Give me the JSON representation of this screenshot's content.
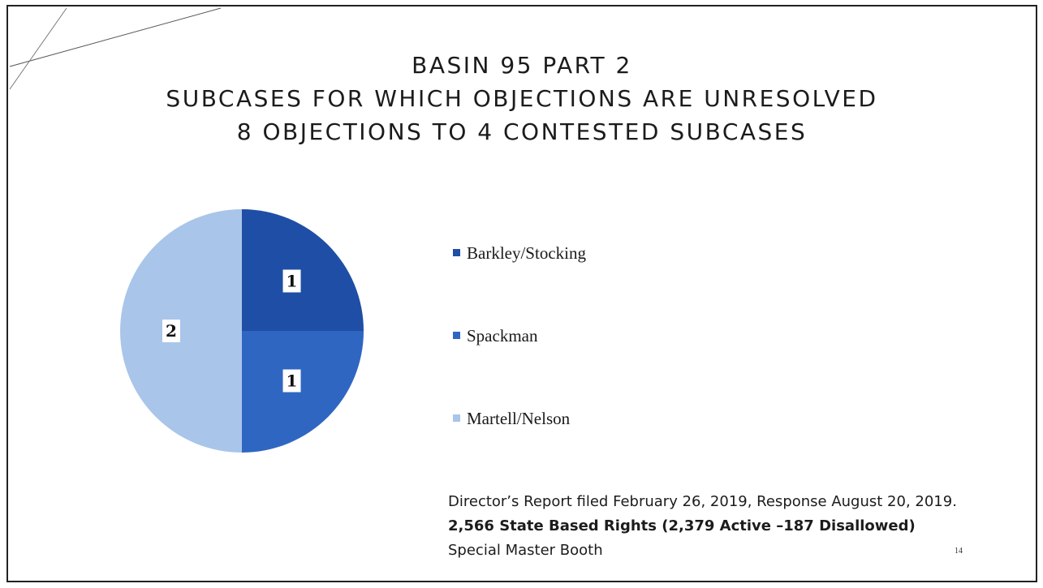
{
  "slide": {
    "title_lines": [
      "BASIN 95 PART 2",
      "SUBCASES FOR WHICH OBJECTIONS ARE UNRESOLVED",
      "8 OBJECTIONS TO 4 CONTESTED SUBCASES"
    ],
    "footer": {
      "line1": "Director’s Report filed February 26, 2019, Response August 20, 2019.",
      "line2": "2,566 State Based Rights (2,379 Active –187 Disallowed)",
      "line3": "Special Master Booth"
    },
    "page_number": "14"
  },
  "chart_data": {
    "type": "pie",
    "title": "",
    "categories": [
      "Barkley/Stocking",
      "Spackman",
      "Martell/Nelson"
    ],
    "values": [
      1,
      1,
      2
    ],
    "data_labels": [
      "1",
      "1",
      "2"
    ],
    "colors": [
      "#1f4ea6",
      "#2f66c2",
      "#a9c5e9"
    ],
    "legend_position": "right",
    "start_angle": "12 o'clock, clockwise"
  }
}
